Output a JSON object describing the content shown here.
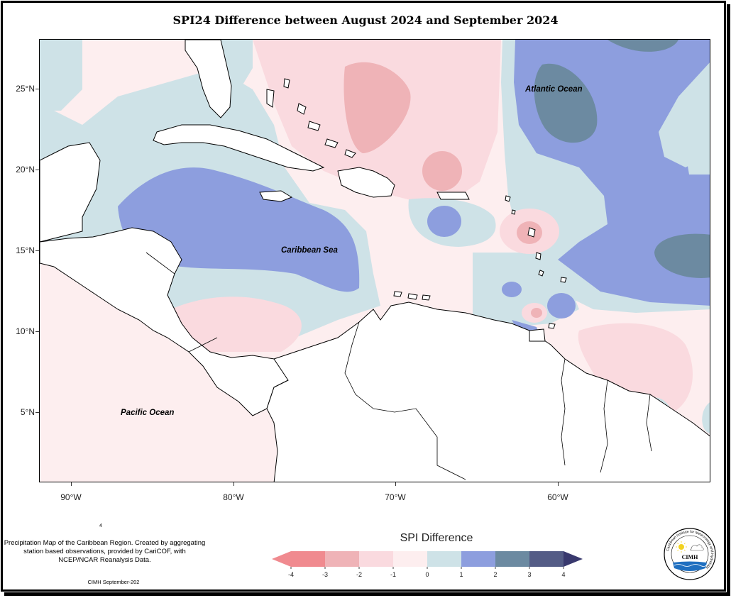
{
  "title": "SPI24 Difference between August 2024 and September 2024",
  "y_axis_ticks": [
    "25°N",
    "20°N",
    "15°N",
    "10°N",
    "5°N"
  ],
  "x_axis_ticks": [
    "90°W",
    "80°W",
    "70°W",
    "60°W"
  ],
  "ocean_labels": {
    "atlantic": "Atlantic Ocean",
    "caribbean": "Caribbean Sea",
    "pacific": "Pacific Ocean"
  },
  "legend": {
    "title": "SPI Difference",
    "tick_labels": [
      "-4",
      "-3",
      "-2",
      "-1",
      "0",
      "1",
      "2",
      "3",
      "4"
    ],
    "colors": [
      "#f08a8f",
      "#efb3b7",
      "#fadadf",
      "#fdeeef",
      "#ceE2e7",
      "#8d9ede",
      "#6c8aa1",
      "#545c86"
    ],
    "arrow_low_color": "#f08a8f",
    "arrow_high_color": "#39396e"
  },
  "credits": "Precipitation Map of the Caribbean Region. Created by aggregating station based observations, provided by CariCOF, with NCEP/NCAR Reanalysis Data.",
  "stray_mark": "4",
  "footer": "CIMH September-202",
  "logo": {
    "name": "CIMH",
    "ring_text": "Caribbean Institute for Meteorology and Hydrology"
  }
}
